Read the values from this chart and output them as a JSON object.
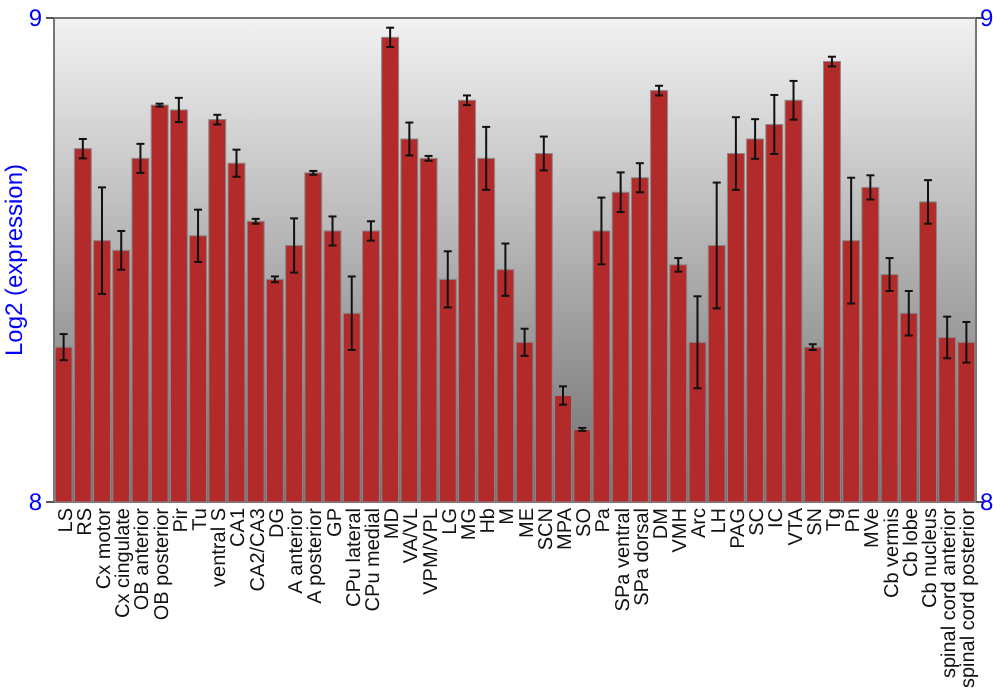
{
  "chart_data": {
    "type": "bar",
    "ylabel": "Log2 (expression)",
    "categories": [
      "LS",
      "RS",
      "Cx motor",
      "Cx cingulate",
      "OB anterior",
      "OB posterior",
      "Pir",
      "Tu",
      "ventral S",
      "CA1",
      "CA2/CA3",
      "DG",
      "A anterior",
      "A posterior",
      "GP",
      "CPu lateral",
      "CPu medial",
      "MD",
      "VA/VL",
      "VPM/VPL",
      "LG",
      "MG",
      "Hb",
      "M",
      "ME",
      "SCN",
      "MPA",
      "SO",
      "Pa",
      "SPa ventral",
      "SPa dorsal",
      "DM",
      "VMH",
      "Arc",
      "LH",
      "PAG",
      "SC",
      "IC",
      "VTA",
      "SN",
      "Tg",
      "Pn",
      "MVe",
      "Cb vermis",
      "Cb lobe",
      "Cb nucleus",
      "spinal cord anterior",
      "spinal cord posterior"
    ],
    "values": [
      8.32,
      8.73,
      8.54,
      8.52,
      8.71,
      8.82,
      8.81,
      8.55,
      8.79,
      8.7,
      8.58,
      8.46,
      8.53,
      8.68,
      8.56,
      8.39,
      8.56,
      8.96,
      8.75,
      8.71,
      8.46,
      8.83,
      8.71,
      8.48,
      8.33,
      8.72,
      8.22,
      8.15,
      8.56,
      8.64,
      8.67,
      8.85,
      8.49,
      8.33,
      8.53,
      8.72,
      8.75,
      8.78,
      8.83,
      8.32,
      8.91,
      8.54,
      8.65,
      8.47,
      8.39,
      8.62,
      8.34,
      8.33
    ],
    "errors": [
      0.027,
      0.02,
      0.11,
      0.04,
      0.03,
      0.003,
      0.025,
      0.054,
      0.01,
      0.028,
      0.005,
      0.006,
      0.056,
      0.004,
      0.03,
      0.076,
      0.02,
      0.02,
      0.034,
      0.005,
      0.058,
      0.01,
      0.065,
      0.054,
      0.028,
      0.035,
      0.019,
      0.003,
      0.069,
      0.041,
      0.03,
      0.01,
      0.014,
      0.095,
      0.13,
      0.075,
      0.041,
      0.061,
      0.04,
      0.006,
      0.01,
      0.13,
      0.025,
      0.034,
      0.046,
      0.045,
      0.043,
      0.042
    ],
    "color": "#b22a2a",
    "ylim": [
      8,
      9
    ],
    "yticks": [
      8,
      9
    ],
    "y2lim": [
      8,
      9
    ],
    "y2ticks": [
      8,
      9
    ]
  }
}
